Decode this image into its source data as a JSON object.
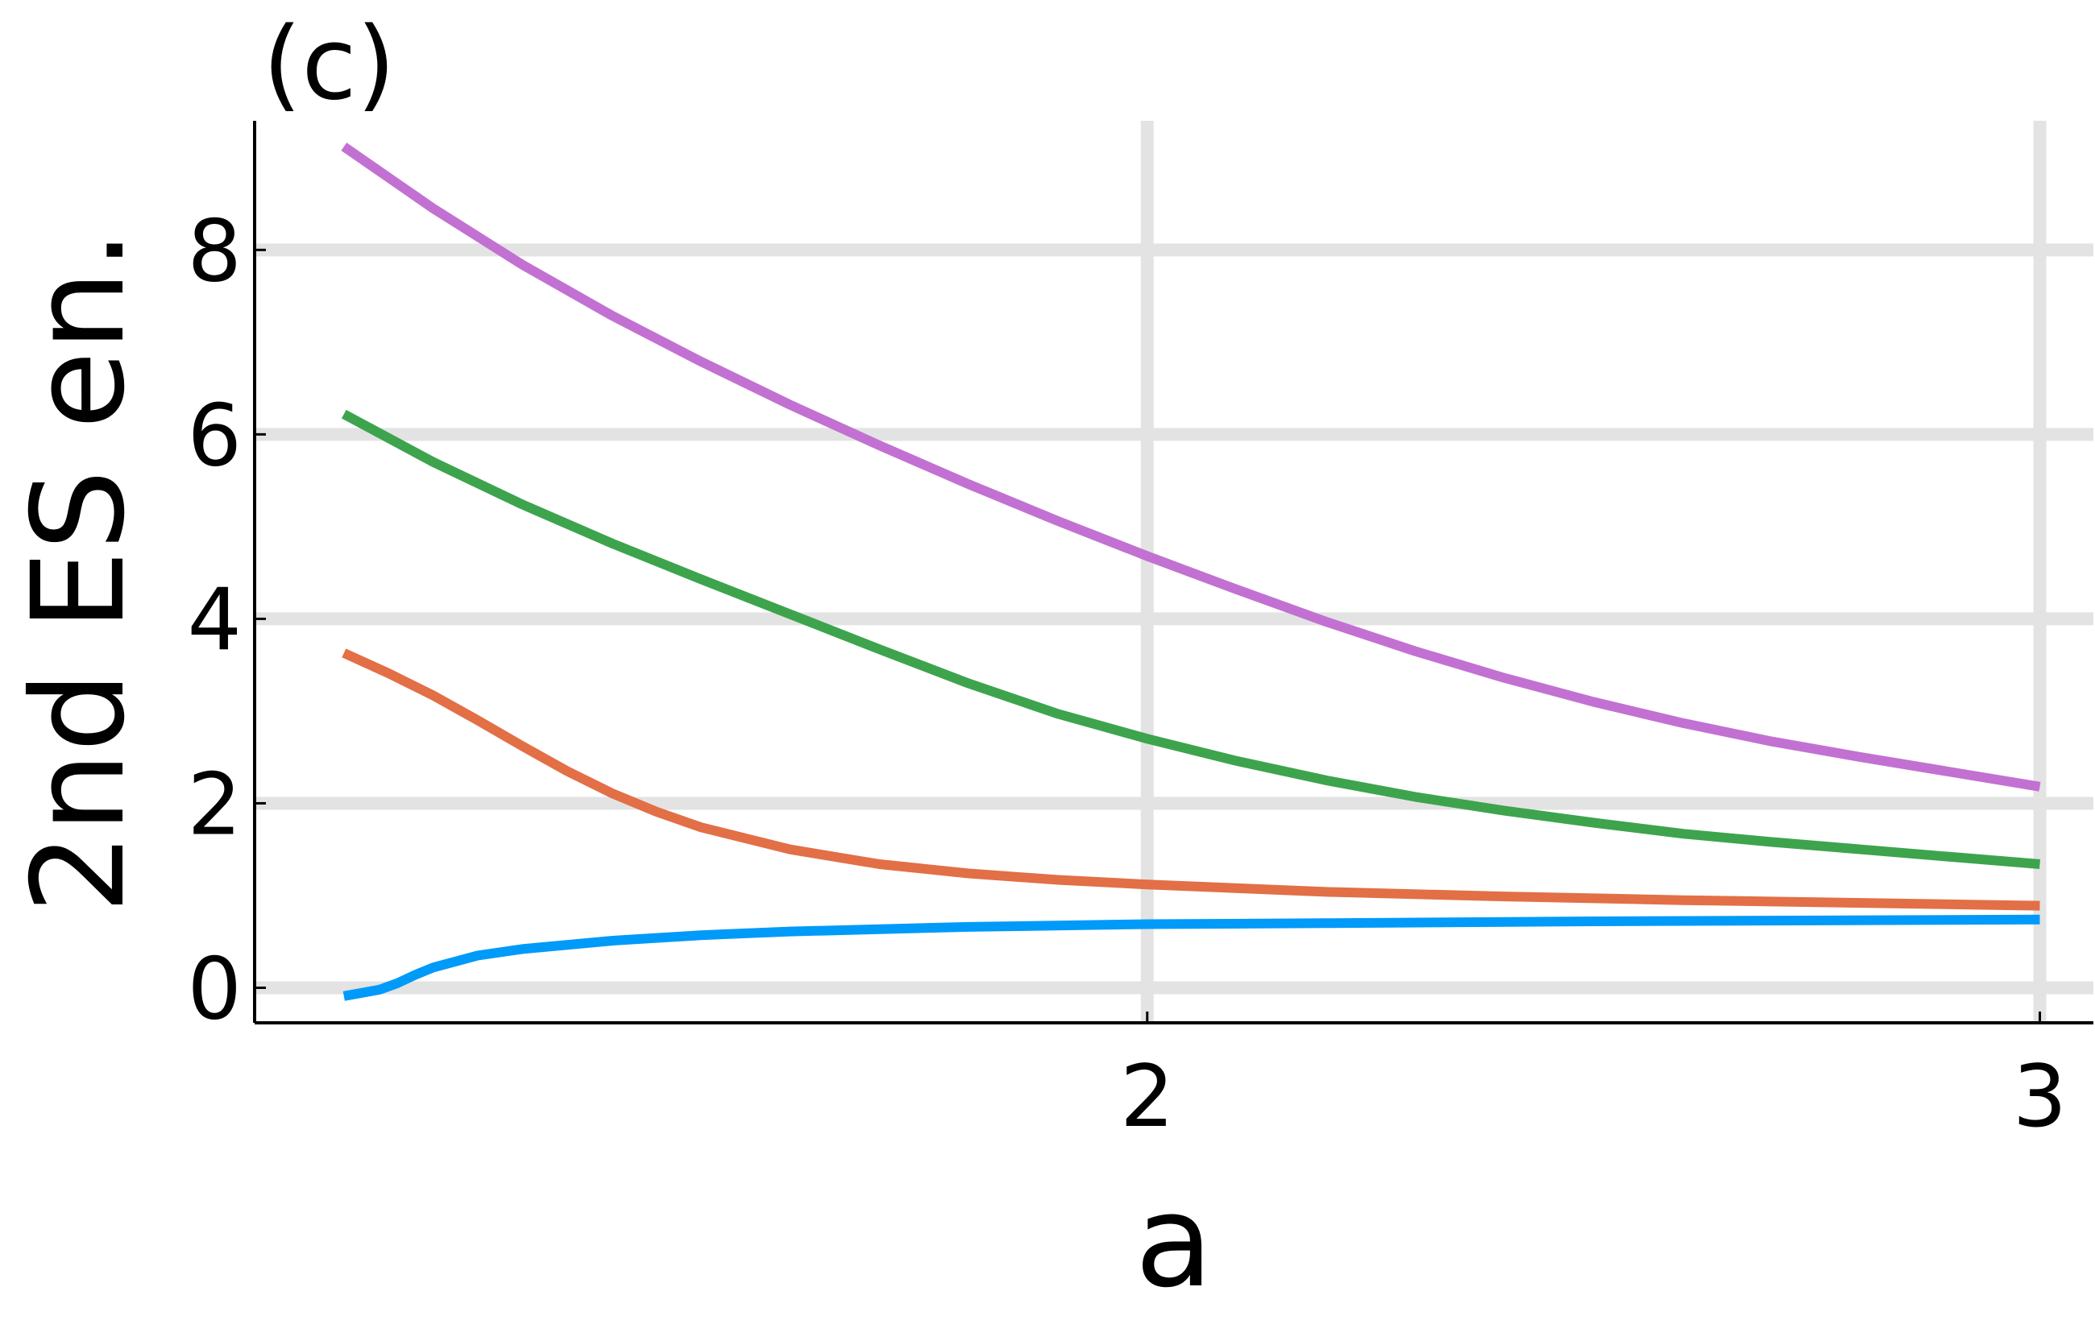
{
  "chart_data": {
    "type": "line",
    "title": "(c)",
    "xlabel": "a",
    "ylabel": "2nd ES en.",
    "xlim": [
      1.0,
      3.06
    ],
    "ylim": [
      -0.38,
      9.4
    ],
    "xticks": [
      {
        "value": 2,
        "label": "2"
      },
      {
        "value": 3,
        "label": "3"
      }
    ],
    "yticks": [
      {
        "value": 0,
        "label": "0"
      },
      {
        "value": 2,
        "label": "2"
      },
      {
        "value": 4,
        "label": "4"
      },
      {
        "value": 6,
        "label": "6"
      },
      {
        "value": 8,
        "label": "8"
      }
    ],
    "grid": true,
    "legend": "none",
    "series": [
      {
        "color": "#c271d2",
        "x": [
          1.1,
          1.2,
          1.3,
          1.4,
          1.5,
          1.6,
          1.7,
          1.8,
          1.9,
          2.0,
          2.1,
          2.2,
          2.3,
          2.4,
          2.5,
          2.6,
          2.7,
          2.8,
          2.9,
          3.0
        ],
        "y": [
          9.12,
          8.45,
          7.84,
          7.29,
          6.79,
          6.32,
          5.88,
          5.46,
          5.06,
          4.68,
          4.32,
          3.97,
          3.65,
          3.36,
          3.1,
          2.87,
          2.67,
          2.5,
          2.34,
          2.18
        ]
      },
      {
        "color": "#3da44d",
        "x": [
          1.1,
          1.2,
          1.3,
          1.4,
          1.5,
          1.6,
          1.7,
          1.8,
          1.9,
          2.0,
          2.1,
          2.2,
          2.3,
          2.4,
          2.5,
          2.6,
          2.7,
          2.8,
          2.9,
          3.0
        ],
        "y": [
          6.22,
          5.7,
          5.24,
          4.82,
          4.43,
          4.05,
          3.67,
          3.3,
          2.97,
          2.7,
          2.46,
          2.25,
          2.07,
          1.92,
          1.79,
          1.67,
          1.58,
          1.5,
          1.42,
          1.34
        ]
      },
      {
        "color": "#e26f46",
        "x": [
          1.1,
          1.15,
          1.2,
          1.25,
          1.3,
          1.35,
          1.4,
          1.45,
          1.5,
          1.6,
          1.7,
          1.8,
          1.9,
          2.0,
          2.2,
          2.4,
          2.6,
          2.8,
          3.0
        ],
        "y": [
          3.63,
          3.41,
          3.17,
          2.9,
          2.62,
          2.35,
          2.11,
          1.91,
          1.74,
          1.5,
          1.34,
          1.24,
          1.17,
          1.12,
          1.04,
          0.99,
          0.95,
          0.92,
          0.89
        ]
      },
      {
        "color": "#009af9",
        "x": [
          1.1,
          1.14,
          1.16,
          1.18,
          1.2,
          1.25,
          1.3,
          1.4,
          1.5,
          1.6,
          1.8,
          2.0,
          2.2,
          2.5,
          3.0
        ],
        "y": [
          -0.09,
          -0.02,
          0.05,
          0.14,
          0.22,
          0.35,
          0.42,
          0.51,
          0.57,
          0.61,
          0.66,
          0.69,
          0.7,
          0.72,
          0.74
        ]
      }
    ]
  }
}
